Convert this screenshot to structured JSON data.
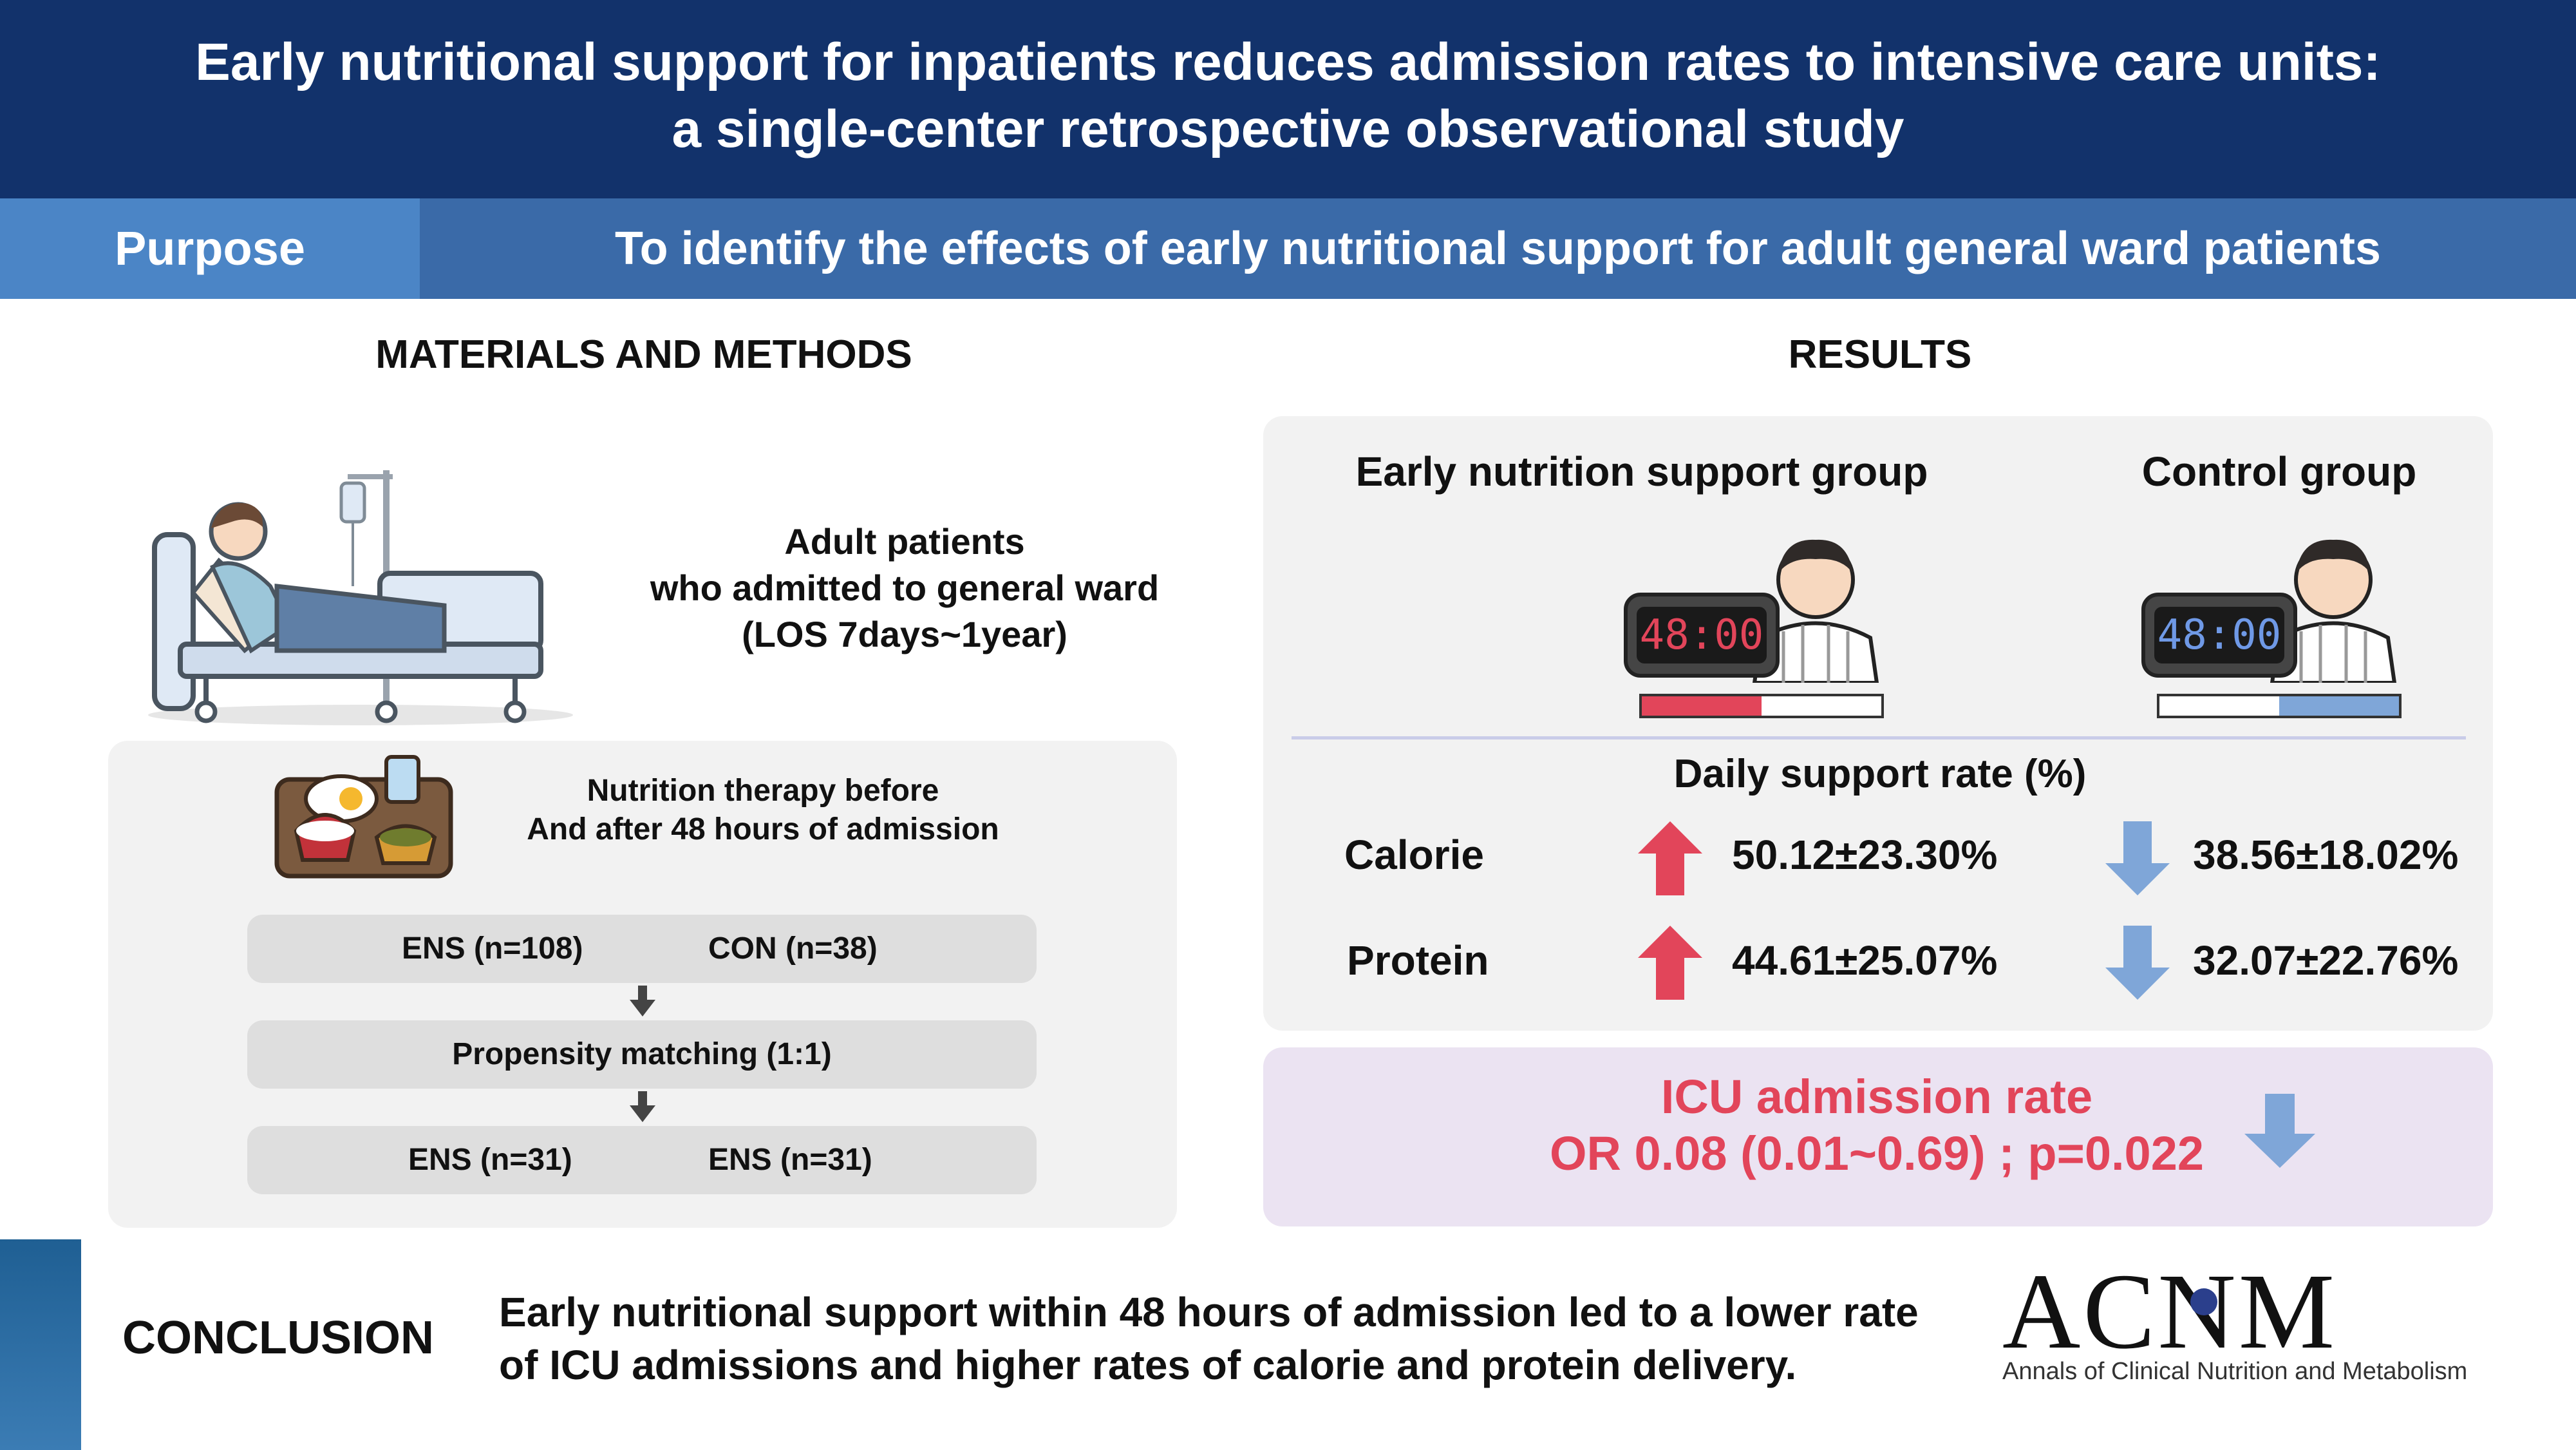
{
  "header": {
    "line1": "Early nutritional support for inpatients reduces admission rates to intensive care units:",
    "line2": "a single-center retrospective observational study"
  },
  "purpose": {
    "label": "Purpose",
    "text": "To identify the effects of early nutritional support for adult general ward patients"
  },
  "methods": {
    "title": "MATERIALS AND METHODS",
    "patients_line1": "Adult patients",
    "patients_line2": "who admitted to general ward",
    "patients_line3": "(LOS 7days~1year)",
    "therapy_line1": "Nutrition therapy before",
    "therapy_line2": "And after 48 hours of admission",
    "step1_left": "ENS (n=108)",
    "step1_right": "CON (n=38)",
    "step2": "Propensity matching (1:1)",
    "step3_left": "ENS (n=31)",
    "step3_right": "ENS (n=31)"
  },
  "results": {
    "title": "RESULTS",
    "group_early": "Early nutrition support group",
    "group_control": "Control group",
    "clock_early": "48:00",
    "clock_control": "48:00",
    "early_bar_fill": 0.5,
    "control_bar_fill": 0.5,
    "daily_rate_label": "Daily support rate (%)",
    "rows": [
      {
        "label": "Calorie",
        "early": "50.12±23.30%",
        "control": "38.56±18.02%"
      },
      {
        "label": "Protein",
        "early": "44.61±25.07%",
        "control": "32.07±22.76%"
      }
    ],
    "icu_title": "ICU admission rate",
    "icu_value": "OR 0.08 (0.01~0.69) ; p=0.022"
  },
  "conclusion": {
    "label": "CONCLUSION",
    "line1": "Early nutritional support within 48 hours of admission led to a lower rate",
    "line2": "of ICU admissions and higher rates of calorie and protein delivery."
  },
  "logo": {
    "name": "ACNM",
    "subtitle": "Annals of Clinical Nutrition and Metabolism"
  },
  "colors": {
    "header_bg": "#12326b",
    "purpose_label_bg": "#4b85c6",
    "purpose_text_bg": "#3a6aa8",
    "up_arrow": "#e2455a",
    "down_arrow": "#7fa6d8",
    "icu_text": "#e2455a",
    "icu_bg": "#ebe3f2"
  }
}
